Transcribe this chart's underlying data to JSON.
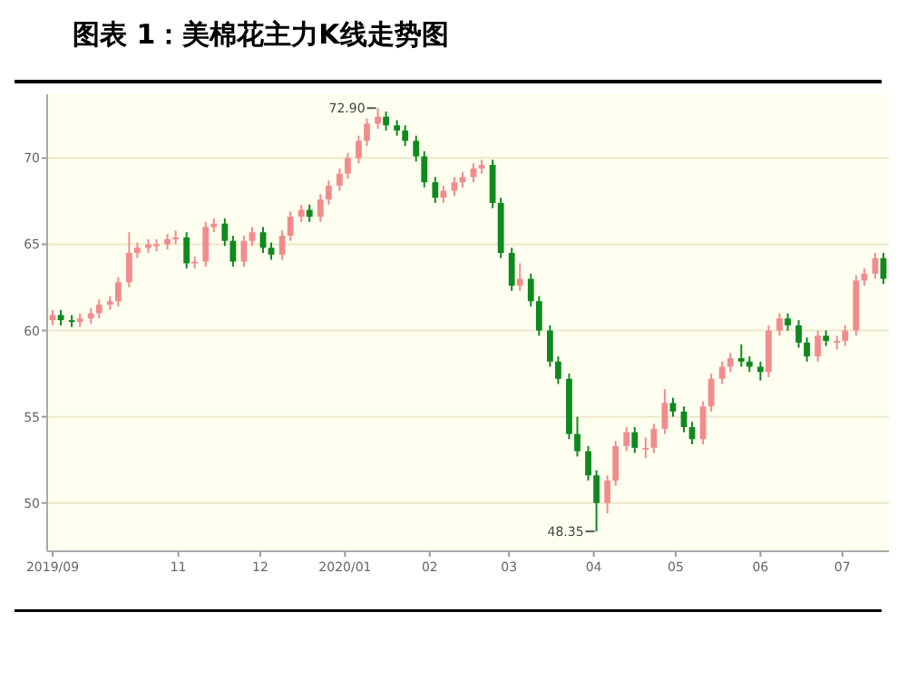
{
  "chart_data": {
    "type": "candlestick",
    "title": "图表 1：美棉花主力K线走势图",
    "x": [
      "2019-09-16",
      "2019-09-19",
      "2019-09-23",
      "2019-09-26",
      "2019-09-30",
      "2019-10-03",
      "2019-10-07",
      "2019-10-10",
      "2019-10-14",
      "2019-10-17",
      "2019-10-21",
      "2019-10-24",
      "2019-10-28",
      "2019-10-31",
      "2019-11-04",
      "2019-11-07",
      "2019-11-11",
      "2019-11-14",
      "2019-11-18",
      "2019-11-21",
      "2019-11-25",
      "2019-11-28",
      "2019-12-02",
      "2019-12-05",
      "2019-12-09",
      "2019-12-12",
      "2019-12-16",
      "2019-12-19",
      "2019-12-23",
      "2019-12-26",
      "2019-12-30",
      "2020-01-02",
      "2020-01-06",
      "2020-01-09",
      "2020-01-13",
      "2020-01-16",
      "2020-01-20",
      "2020-01-23",
      "2020-01-27",
      "2020-01-30",
      "2020-02-03",
      "2020-02-06",
      "2020-02-10",
      "2020-02-13",
      "2020-02-17",
      "2020-02-20",
      "2020-02-24",
      "2020-02-27",
      "2020-03-02",
      "2020-03-05",
      "2020-03-09",
      "2020-03-12",
      "2020-03-16",
      "2020-03-19",
      "2020-03-23",
      "2020-03-26",
      "2020-03-30",
      "2020-04-02",
      "2020-04-06",
      "2020-04-09",
      "2020-04-13",
      "2020-04-16",
      "2020-04-20",
      "2020-04-23",
      "2020-04-27",
      "2020-04-30",
      "2020-05-04",
      "2020-05-07",
      "2020-05-11",
      "2020-05-14",
      "2020-05-18",
      "2020-05-21",
      "2020-05-25",
      "2020-05-28",
      "2020-06-01",
      "2020-06-04",
      "2020-06-08",
      "2020-06-11",
      "2020-06-15",
      "2020-06-18",
      "2020-06-22",
      "2020-06-25",
      "2020-06-29",
      "2020-07-02",
      "2020-07-06",
      "2020-07-09",
      "2020-07-13",
      "2020-07-16"
    ],
    "ohlc": [
      [
        60.6,
        61.2,
        60.3,
        60.9
      ],
      [
        60.9,
        61.2,
        60.3,
        60.6
      ],
      [
        60.6,
        60.9,
        60.2,
        60.5
      ],
      [
        60.5,
        61.0,
        60.2,
        60.7
      ],
      [
        60.7,
        61.3,
        60.4,
        61.0
      ],
      [
        61.0,
        61.8,
        60.7,
        61.5
      ],
      [
        61.5,
        62.0,
        61.2,
        61.7
      ],
      [
        61.7,
        63.1,
        61.4,
        62.8
      ],
      [
        62.8,
        65.7,
        62.5,
        64.5
      ],
      [
        64.5,
        65.1,
        64.2,
        64.8
      ],
      [
        64.8,
        65.3,
        64.5,
        65.0
      ],
      [
        65.0,
        65.3,
        64.6,
        65.0
      ],
      [
        65.0,
        65.6,
        64.7,
        65.3
      ],
      [
        65.3,
        65.8,
        65.0,
        65.4
      ],
      [
        65.4,
        65.7,
        63.6,
        63.9
      ],
      [
        63.9,
        64.3,
        63.6,
        64.0
      ],
      [
        64.0,
        66.3,
        63.7,
        66.0
      ],
      [
        66.0,
        66.5,
        65.7,
        66.2
      ],
      [
        66.2,
        66.5,
        64.9,
        65.2
      ],
      [
        65.2,
        65.5,
        63.7,
        64.0
      ],
      [
        64.0,
        65.5,
        63.7,
        65.2
      ],
      [
        65.2,
        66.0,
        64.9,
        65.7
      ],
      [
        65.7,
        66.0,
        64.5,
        64.8
      ],
      [
        64.8,
        65.1,
        64.1,
        64.4
      ],
      [
        64.4,
        65.8,
        64.1,
        65.5
      ],
      [
        65.5,
        66.9,
        65.2,
        66.6
      ],
      [
        66.6,
        67.3,
        66.3,
        67.0
      ],
      [
        67.0,
        67.3,
        66.3,
        66.6
      ],
      [
        66.6,
        67.9,
        66.3,
        67.6
      ],
      [
        67.6,
        68.7,
        67.3,
        68.4
      ],
      [
        68.4,
        69.4,
        68.1,
        69.1
      ],
      [
        69.1,
        70.3,
        68.8,
        70.0
      ],
      [
        70.0,
        71.3,
        69.7,
        71.0
      ],
      [
        71.0,
        72.3,
        70.7,
        72.0
      ],
      [
        72.0,
        72.9,
        71.7,
        72.4
      ],
      [
        72.4,
        72.7,
        71.6,
        71.9
      ],
      [
        71.9,
        72.2,
        71.3,
        71.6
      ],
      [
        71.6,
        71.9,
        70.7,
        71.0
      ],
      [
        71.0,
        71.3,
        69.8,
        70.1
      ],
      [
        70.1,
        70.4,
        68.3,
        68.6
      ],
      [
        68.6,
        68.9,
        67.4,
        67.7
      ],
      [
        67.7,
        68.4,
        67.4,
        68.1
      ],
      [
        68.1,
        68.9,
        67.8,
        68.6
      ],
      [
        68.6,
        69.2,
        68.3,
        68.9
      ],
      [
        68.9,
        69.7,
        68.6,
        69.4
      ],
      [
        69.4,
        69.9,
        69.1,
        69.6
      ],
      [
        69.6,
        69.9,
        67.1,
        67.4
      ],
      [
        67.4,
        67.7,
        64.2,
        64.5
      ],
      [
        64.5,
        64.8,
        62.3,
        62.6
      ],
      [
        62.6,
        63.9,
        62.3,
        63.0
      ],
      [
        63.0,
        63.3,
        61.4,
        61.7
      ],
      [
        61.7,
        62.0,
        59.7,
        60.0
      ],
      [
        60.0,
        60.3,
        57.9,
        58.2
      ],
      [
        58.2,
        58.5,
        56.9,
        57.2
      ],
      [
        57.2,
        57.5,
        53.7,
        54.0
      ],
      [
        54.0,
        55.0,
        52.7,
        53.0
      ],
      [
        53.0,
        53.3,
        51.3,
        51.6
      ],
      [
        51.6,
        51.9,
        48.35,
        50.0
      ],
      [
        50.0,
        51.6,
        49.4,
        51.3
      ],
      [
        51.3,
        53.6,
        51.0,
        53.3
      ],
      [
        53.3,
        54.4,
        53.0,
        54.1
      ],
      [
        54.1,
        54.4,
        52.9,
        53.2
      ],
      [
        53.2,
        53.8,
        52.6,
        53.2
      ],
      [
        53.2,
        54.6,
        52.9,
        54.3
      ],
      [
        54.3,
        56.6,
        54.0,
        55.8
      ],
      [
        55.8,
        56.1,
        55.0,
        55.3
      ],
      [
        55.3,
        55.6,
        54.1,
        54.4
      ],
      [
        54.4,
        54.7,
        53.4,
        53.7
      ],
      [
        53.7,
        55.9,
        53.4,
        55.6
      ],
      [
        55.6,
        57.5,
        55.3,
        57.2
      ],
      [
        57.2,
        58.2,
        56.9,
        57.9
      ],
      [
        57.9,
        58.7,
        57.6,
        58.4
      ],
      [
        58.4,
        59.2,
        57.9,
        58.2
      ],
      [
        58.2,
        58.5,
        57.6,
        57.9
      ],
      [
        57.9,
        58.2,
        57.1,
        57.6
      ],
      [
        57.6,
        60.3,
        57.3,
        60.0
      ],
      [
        60.0,
        61.0,
        59.7,
        60.7
      ],
      [
        60.7,
        61.0,
        60.0,
        60.3
      ],
      [
        60.3,
        60.6,
        59.0,
        59.3
      ],
      [
        59.3,
        59.6,
        58.2,
        58.5
      ],
      [
        58.5,
        60.0,
        58.2,
        59.7
      ],
      [
        59.7,
        60.0,
        59.1,
        59.4
      ],
      [
        59.4,
        59.7,
        58.9,
        59.4
      ],
      [
        59.4,
        60.3,
        59.1,
        60.0
      ],
      [
        60.0,
        63.2,
        59.7,
        62.9
      ],
      [
        62.9,
        63.6,
        62.6,
        63.3
      ],
      [
        63.3,
        64.5,
        63.0,
        64.2
      ],
      [
        64.2,
        64.5,
        62.7,
        63.0
      ]
    ],
    "xlim": [
      "2019-09-14",
      "2020-07-18"
    ],
    "xticks": [
      {
        "value": "2019-09-16",
        "label": "2019/09"
      },
      {
        "value": "2019-11-01",
        "label": "11"
      },
      {
        "value": "2019-12-01",
        "label": "12"
      },
      {
        "value": "2020-01-01",
        "label": "2020/01"
      },
      {
        "value": "2020-02-01",
        "label": "02"
      },
      {
        "value": "2020-03-01",
        "label": "03"
      },
      {
        "value": "2020-04-01",
        "label": "04"
      },
      {
        "value": "2020-05-01",
        "label": "05"
      },
      {
        "value": "2020-06-01",
        "label": "06"
      },
      {
        "value": "2020-07-01",
        "label": "07"
      }
    ],
    "ylim": [
      47.2,
      73.7
    ],
    "yticks": [
      50,
      55,
      60,
      65,
      70
    ],
    "grid": "y",
    "annotations": [
      {
        "text": "72.90",
        "x": "2020-01-13",
        "y": 72.9
      },
      {
        "text": "48.35",
        "x": "2020-04-02",
        "y": 48.35
      }
    ]
  }
}
